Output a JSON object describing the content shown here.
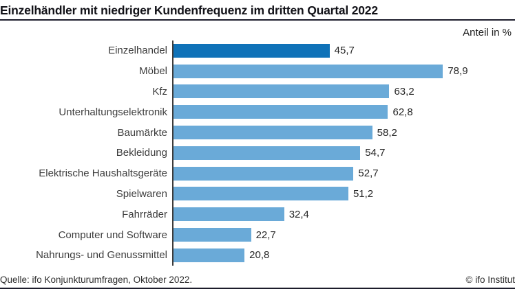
{
  "header": {
    "title": "Einzelhändler mit niedriger Kundenfrequenz im dritten Quartal 2022",
    "unit_label": "Anteil in %"
  },
  "chart_data": {
    "type": "bar",
    "orientation": "horizontal",
    "title": "Einzelhändler mit niedriger Kundenfrequenz im dritten Quartal 2022",
    "xlabel": "Anteil in %",
    "ylabel": "",
    "xlim": [
      0,
      100
    ],
    "grid": false,
    "categories": [
      "Einzelhandel",
      "Möbel",
      "Kfz",
      "Unterhaltungselektronik",
      "Baumärkte",
      "Bekleidung",
      "Elektrische Haushaltsgeräte",
      "Spielwaren",
      "Fahrräder",
      "Computer und Software",
      "Nahrungs- und Genussmittel"
    ],
    "values": [
      45.7,
      78.9,
      63.2,
      62.8,
      58.2,
      54.7,
      52.7,
      51.2,
      32.4,
      22.7,
      20.8
    ],
    "value_labels": [
      "45,7",
      "78,9",
      "63,2",
      "62,8",
      "58,2",
      "54,7",
      "52,7",
      "51,2",
      "32,4",
      "22,7",
      "20,8"
    ],
    "highlight_index": 0,
    "colors": {
      "highlight": "#0f72b8",
      "default": "#6aaad8"
    }
  },
  "footer": {
    "source": "Quelle: ifo Konjunkturumfragen, Oktober 2022.",
    "copyright": "© ifo Institut"
  },
  "colors": {
    "rule": "#1c1c2b",
    "axis": "#3c3c3c",
    "title_text": "#121218",
    "label_text": "#3d3d3d"
  }
}
